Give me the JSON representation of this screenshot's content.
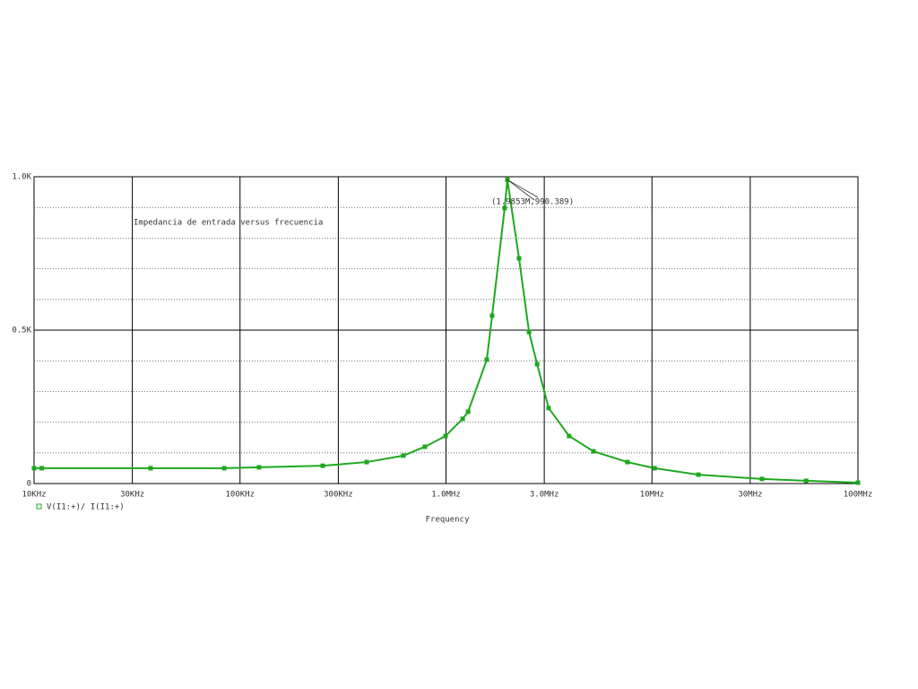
{
  "chart_data": {
    "type": "line",
    "x_label": "Frequency",
    "annotation": "Impedancia de entrada versus frecuencia",
    "point_label": {
      "text": "(1.9853M,990.389)",
      "x": 1985300,
      "y": 990.389
    },
    "x": [
      10000,
      10900,
      36800,
      83800,
      123600,
      252000,
      412000,
      621000,
      790000,
      995000,
      1205000,
      1280000,
      1578000,
      1675000,
      1927000,
      1985300,
      2263000,
      2530000,
      2770000,
      3150000,
      3960000,
      5200000,
      7600000,
      10300000,
      16800000,
      34200000,
      56000000,
      100000000
    ],
    "series": [
      {
        "name": "V(I1:+)/ I(I1:+)",
        "color": "#1fa81f",
        "values": [
          50,
          50,
          50,
          50,
          53,
          58,
          70,
          91,
          120,
          155,
          211,
          234,
          404,
          547,
          898,
          990.389,
          734,
          494,
          389,
          246,
          155,
          105,
          70,
          50,
          29,
          15,
          9,
          3
        ]
      }
    ],
    "x_scale": "log",
    "xlim": [
      10000,
      100000000
    ],
    "xticks": [
      {
        "value": 10000,
        "label": "10KHz"
      },
      {
        "value": 30000,
        "label": "30KHz"
      },
      {
        "value": 100000,
        "label": "100KHz"
      },
      {
        "value": 300000,
        "label": "300KHz"
      },
      {
        "value": 1000000,
        "label": "1.0MHz"
      },
      {
        "value": 3000000,
        "label": "3.0MHz"
      },
      {
        "value": 10000000,
        "label": "10MHz"
      },
      {
        "value": 30000000,
        "label": "30MHz"
      },
      {
        "value": 100000000,
        "label": "100MHz"
      }
    ],
    "ylim": [
      0,
      1000
    ],
    "yticks": [
      0,
      {
        "value": 500,
        "label": "0.5K"
      },
      {
        "value": 1000,
        "label": "1.0K"
      }
    ],
    "y_minor_grid": [
      100,
      200,
      300,
      400,
      600,
      700,
      800,
      900
    ],
    "grid": true
  }
}
